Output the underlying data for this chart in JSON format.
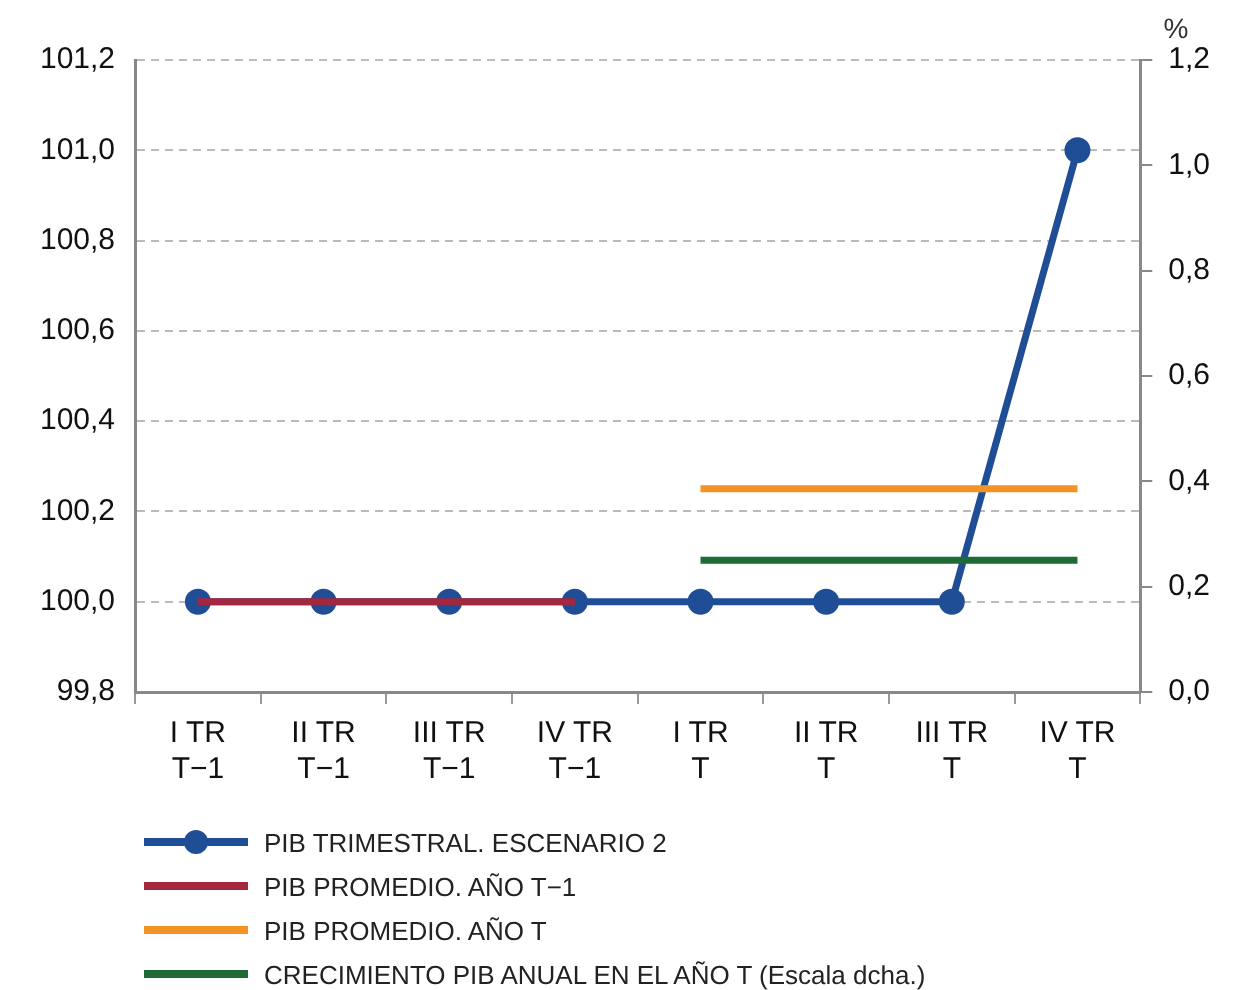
{
  "chart_data": {
    "type": "line",
    "categories": [
      "I TR\nT−1",
      "II TR\nT−1",
      "III TR\nT−1",
      "IV TR\nT−1",
      "I TR\nT",
      "II TR\nT",
      "III TR\nT",
      "IV TR\nT"
    ],
    "series": [
      {
        "name": "PIB TRIMESTRAL. ESCENARIO 2",
        "color": "#1f4e96",
        "marker": "circle",
        "values": [
          100.0,
          100.0,
          100.0,
          100.0,
          100.0,
          100.0,
          100.0,
          101.0
        ]
      },
      {
        "name": "PIB PROMEDIO. AÑO T−1",
        "color": "#a3283f",
        "values": [
          100.0,
          100.0,
          100.0,
          100.0,
          null,
          null,
          null,
          null
        ]
      },
      {
        "name": "PIB PROMEDIO. AÑO T",
        "color": "#f39325",
        "values": [
          null,
          null,
          null,
          null,
          100.25,
          100.25,
          100.25,
          100.25
        ]
      },
      {
        "name": "CRECIMIENTO PIB ANUAL EN EL AÑO T (Escala dcha.)",
        "color": "#1e6b35",
        "axis": "y2",
        "values": [
          null,
          null,
          null,
          null,
          0.25,
          0.25,
          0.25,
          0.25
        ]
      }
    ],
    "ylim": [
      99.8,
      101.2
    ],
    "yticks": [
      {
        "value": 99.8,
        "label": "99,8"
      },
      {
        "value": 100.0,
        "label": "100,0"
      },
      {
        "value": 100.2,
        "label": "100,2"
      },
      {
        "value": 100.4,
        "label": "100,4"
      },
      {
        "value": 100.6,
        "label": "100,6"
      },
      {
        "value": 100.8,
        "label": "100,8"
      },
      {
        "value": 101.0,
        "label": "101,0"
      },
      {
        "value": 101.2,
        "label": "101,2"
      }
    ],
    "y2lim": [
      0,
      1.2
    ],
    "y2ticks": [
      {
        "value": 0,
        "label": "0,0"
      },
      {
        "value": 0.2,
        "label": "0,2"
      },
      {
        "value": 0.4,
        "label": "0,4"
      },
      {
        "value": 0.6,
        "label": "0,6"
      },
      {
        "value": 0.8,
        "label": "0,8"
      },
      {
        "value": 1.0,
        "label": "1,0"
      },
      {
        "value": 1.2,
        "label": "1,2"
      }
    ],
    "y2label": "%",
    "grid": "y",
    "legend": "bottom",
    "line_style": "solid"
  }
}
